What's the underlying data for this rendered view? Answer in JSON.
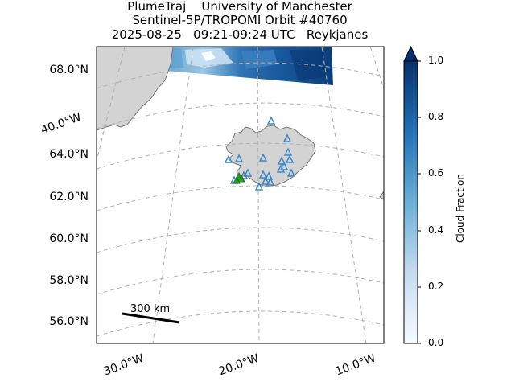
{
  "title": {
    "line1": "PlumeTraj    University of Manchester",
    "line2": "Sentinel-5P/TROPOMI Orbit #40760",
    "line3": "2025-08-25   09:21-09:24 UTC   Reykjanes"
  },
  "map": {
    "lat_labels": [
      "68.0°N",
      "64.0°N",
      "62.0°N",
      "60.0°N",
      "58.0°N",
      "56.0°N"
    ],
    "lon_labels_bottom": [
      "30.0°W",
      "20.0°W",
      "10.0°W"
    ],
    "lon_label_left": "40.0°W",
    "scale_bar_label": "300 km",
    "colors": {
      "land": "#d3d3d3",
      "coast": "#777777",
      "grid": "#b0b0b0",
      "station": "#3a86c8",
      "vent": "#2ca02c"
    },
    "markers": {
      "stations": "blue hollow triangles (seismic/monitoring stations)",
      "vent": "green triangles at Reykjanes"
    }
  },
  "colorbar": {
    "label": "Cloud Fraction",
    "ticks": [
      "1.0",
      "0.8",
      "0.6",
      "0.4",
      "0.2",
      "0.0"
    ],
    "colormap": "Blues",
    "extend": "max"
  }
}
